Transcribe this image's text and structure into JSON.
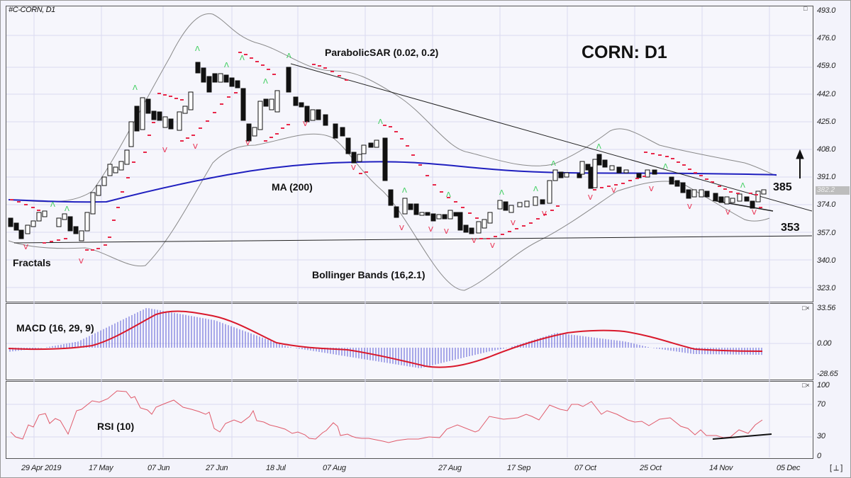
{
  "window": {
    "symbol_label": "#C-CORN, D1",
    "title": "CORN: D1",
    "scroll_control": "[ ⟂ ]"
  },
  "main_pane": {
    "y_axis": [
      "493.0",
      "476.0",
      "459.0",
      "442.0",
      "425.0",
      "408.0",
      "391.0",
      "374.0",
      "357.0",
      "340.0",
      "323.0"
    ],
    "current_price": "382.2",
    "labels": {
      "parabolic_sar": "ParabolicSAR (0.02, 0.2)",
      "ma": "MA (200)",
      "fractals": "Fractals",
      "bollinger": "Bollinger Bands (16,2.1)",
      "resistance": "385",
      "support": "353"
    }
  },
  "macd_pane": {
    "label": "MACD (16, 29, 9)",
    "y_axis": [
      "33.56",
      "0.00",
      "-28.65"
    ],
    "controls": "□×"
  },
  "rsi_pane": {
    "label": "RSI (10)",
    "y_axis": [
      "100",
      "70",
      "30",
      "0"
    ],
    "controls": "□×"
  },
  "x_axis": [
    "29 Apr 2019",
    "17 May",
    "07 Jun",
    "27 Jun",
    "18 Jul",
    "07 Aug",
    "27 Aug",
    "17 Sep",
    "07 Oct",
    "25 Oct",
    "14 Nov",
    "05 Dec"
  ],
  "colors": {
    "ma": "#1f1fbf",
    "sar": "#e8284a",
    "bollinger": "#888888",
    "macd_signal": "#d9182b",
    "macd_hist": "#5b5bd6",
    "rsi": "#e05a6a",
    "fractal_up": "#33cc55",
    "fractal_down": "#e8284a"
  },
  "chart_data": [
    {
      "type": "line",
      "title": "CORN: D1",
      "subtitle": "#C-CORN, D1",
      "xlabel": "",
      "ylabel": "",
      "x": [
        "29 Apr 2019",
        "17 May",
        "07 Jun",
        "27 Jun",
        "18 Jul",
        "07 Aug",
        "27 Aug",
        "17 Sep",
        "07 Oct",
        "25 Oct",
        "14 Nov",
        "05 Dec"
      ],
      "ylim": [
        315,
        493
      ],
      "series": [
        {
          "name": "Close (approx)",
          "values": [
            358,
            372,
            452,
            446,
            432,
            395,
            362,
            370,
            398,
            390,
            378,
            382
          ]
        },
        {
          "name": "MA (200)",
          "values": [
            376,
            378,
            383,
            392,
            397,
            399,
            397,
            395,
            394,
            393,
            392,
            392
          ]
        },
        {
          "name": "Bollinger upper",
          "values": [
            378,
            400,
            470,
            480,
            458,
            430,
            380,
            385,
            420,
            410,
            398,
            390
          ]
        },
        {
          "name": "Bollinger lower",
          "values": [
            352,
            340,
            360,
            415,
            412,
            365,
            320,
            352,
            370,
            380,
            368,
            362
          ]
        }
      ],
      "annotations": [
        "ParabolicSAR (0.02, 0.2)",
        "MA (200)",
        "Fractals",
        "Bollinger Bands (16,2.1)",
        "385",
        "353",
        "up arrow"
      ],
      "levels": {
        "resistance": 385,
        "support": 353
      },
      "grid": true
    },
    {
      "type": "bar",
      "title": "MACD (16, 29, 9)",
      "x": [
        "29 Apr 2019",
        "17 May",
        "07 Jun",
        "27 Jun",
        "18 Jul",
        "07 Aug",
        "27 Aug",
        "17 Sep",
        "07 Oct",
        "25 Oct",
        "14 Nov",
        "05 Dec"
      ],
      "ylim": [
        -28.65,
        33.56
      ],
      "series": [
        {
          "name": "MACD histogram",
          "values": [
            -5,
            5,
            32,
            22,
            2,
            -12,
            -26,
            -5,
            12,
            5,
            -8,
            -9
          ]
        },
        {
          "name": "Signal",
          "values": [
            -6,
            2,
            30,
            24,
            0,
            -10,
            -25,
            -8,
            10,
            8,
            -5,
            -9
          ]
        }
      ]
    },
    {
      "type": "line",
      "title": "RSI (10)",
      "x": [
        "29 Apr 2019",
        "17 May",
        "07 Jun",
        "27 Jun",
        "18 Jul",
        "07 Aug",
        "27 Aug",
        "17 Sep",
        "07 Oct",
        "25 Oct",
        "14 Nov",
        "05 Dec"
      ],
      "ylim": [
        0,
        100
      ],
      "levels": [
        30,
        70
      ],
      "series": [
        {
          "name": "RSI",
          "values": [
            30,
            62,
            85,
            75,
            55,
            28,
            24,
            58,
            78,
            48,
            30,
            52
          ]
        }
      ]
    }
  ]
}
